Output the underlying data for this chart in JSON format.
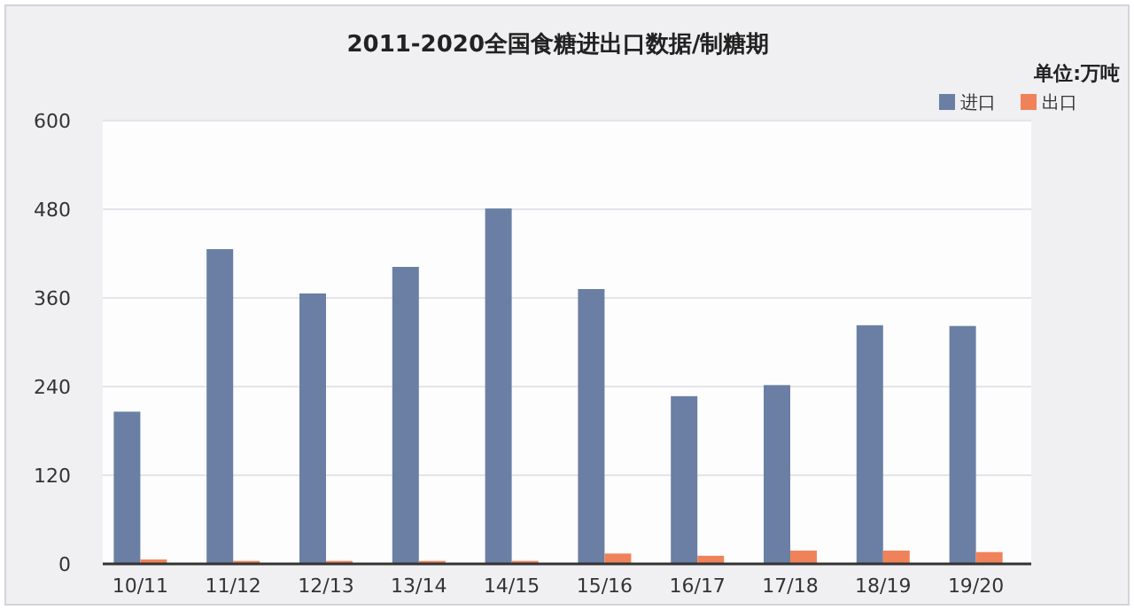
{
  "chart_data": {
    "type": "bar",
    "title": "2011-2020全国食糖进出口数据/制糖期",
    "ylabel": "单位:万吨",
    "categories": [
      "10/11",
      "11/12",
      "12/13",
      "13/14",
      "14/15",
      "15/16",
      "16/17",
      "17/18",
      "18/19",
      "19/20"
    ],
    "series": [
      {
        "name": "进口",
        "color": "#6a7fa3",
        "values": [
          206,
          426,
          366,
          402,
          481,
          372,
          227,
          242,
          323,
          322
        ]
      },
      {
        "name": "出口",
        "color": "#f0825a",
        "values": [
          6,
          4,
          4,
          4,
          4,
          14,
          11,
          18,
          18,
          16
        ]
      }
    ],
    "ylim": [
      0,
      600
    ],
    "yticks": [
      0,
      120,
      240,
      360,
      480,
      600
    ],
    "grid": "y",
    "legend": "top right"
  }
}
